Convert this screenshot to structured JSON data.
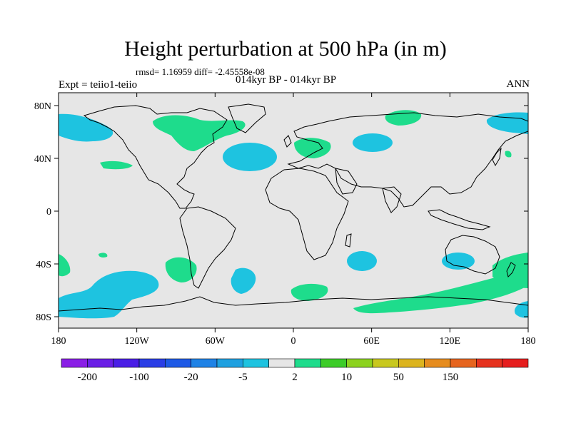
{
  "map": {
    "title": "Height perturbation at 500 hPa (in m)",
    "stats": "rmsd= 1.16959 diff= -2.45558e-08",
    "left_label": "Expt = teiio1-teiio",
    "center_label": "014kyr BP - 014kyr BP",
    "right_label": "ANN",
    "projection": "cylindrical equidistant, 180W to 180E, 90S to 90N",
    "background_color": "#e6e6e6",
    "lat_ticks": [
      "80N",
      "40N",
      "0",
      "40S",
      "80S"
    ],
    "lon_ticks": [
      "180",
      "120W",
      "60W",
      "0",
      "60E",
      "120E",
      "180"
    ],
    "fields": [
      {
        "sign": "negative",
        "color": "#1ec3e0",
        "approx_center": "72N 170W"
      },
      {
        "sign": "negative",
        "color": "#1ec3e0",
        "approx_center": "42N 35W"
      },
      {
        "sign": "negative",
        "color": "#1ec3e0",
        "approx_center": "52N 65E"
      },
      {
        "sign": "negative",
        "color": "#1ec3e0",
        "approx_center": "72N 170E"
      },
      {
        "sign": "negative",
        "color": "#1ec3e0",
        "approx_center": "75S 130W"
      },
      {
        "sign": "negative",
        "color": "#1ec3e0",
        "approx_center": "50S 25W"
      },
      {
        "sign": "negative",
        "color": "#1ec3e0",
        "approx_center": "40S 45E"
      },
      {
        "sign": "negative",
        "color": "#1ec3e0",
        "approx_center": "40S 135E"
      },
      {
        "sign": "negative",
        "color": "#1ec3e0",
        "approx_center": "85S 175E"
      },
      {
        "sign": "positive",
        "color": "#1edc8c",
        "approx_center": "65N 90W"
      },
      {
        "sign": "positive",
        "color": "#1edc8c",
        "approx_center": "45N 10E"
      },
      {
        "sign": "positive",
        "color": "#1edc8c",
        "approx_center": "75N 90E"
      },
      {
        "sign": "positive",
        "color": "#1edc8c",
        "approx_center": "40N 140W"
      },
      {
        "sign": "positive",
        "color": "#1edc8c",
        "approx_center": "45S 95W"
      },
      {
        "sign": "positive",
        "color": "#1edc8c",
        "approx_center": "70S 10E"
      },
      {
        "sign": "positive",
        "color": "#1edc8c",
        "approx_center": "80S 100E"
      },
      {
        "sign": "positive",
        "color": "#1edc8c",
        "approx_center": "45S 170E"
      }
    ]
  },
  "colorbar": {
    "colors": [
      "#8a1ee6",
      "#6a1ee6",
      "#4a1ee6",
      "#2a3ee6",
      "#1e5ae6",
      "#1e82e6",
      "#1ea0e0",
      "#1ec3e0",
      "#e6e6e6",
      "#1edc8c",
      "#3ccc28",
      "#8cd21e",
      "#c8c81e",
      "#dcb41e",
      "#e68c1e",
      "#e6641e",
      "#e6321e",
      "#e61e1e"
    ],
    "labels": [
      "-200",
      "-100",
      "-20",
      "-5",
      "2",
      "10",
      "50",
      "150"
    ]
  }
}
